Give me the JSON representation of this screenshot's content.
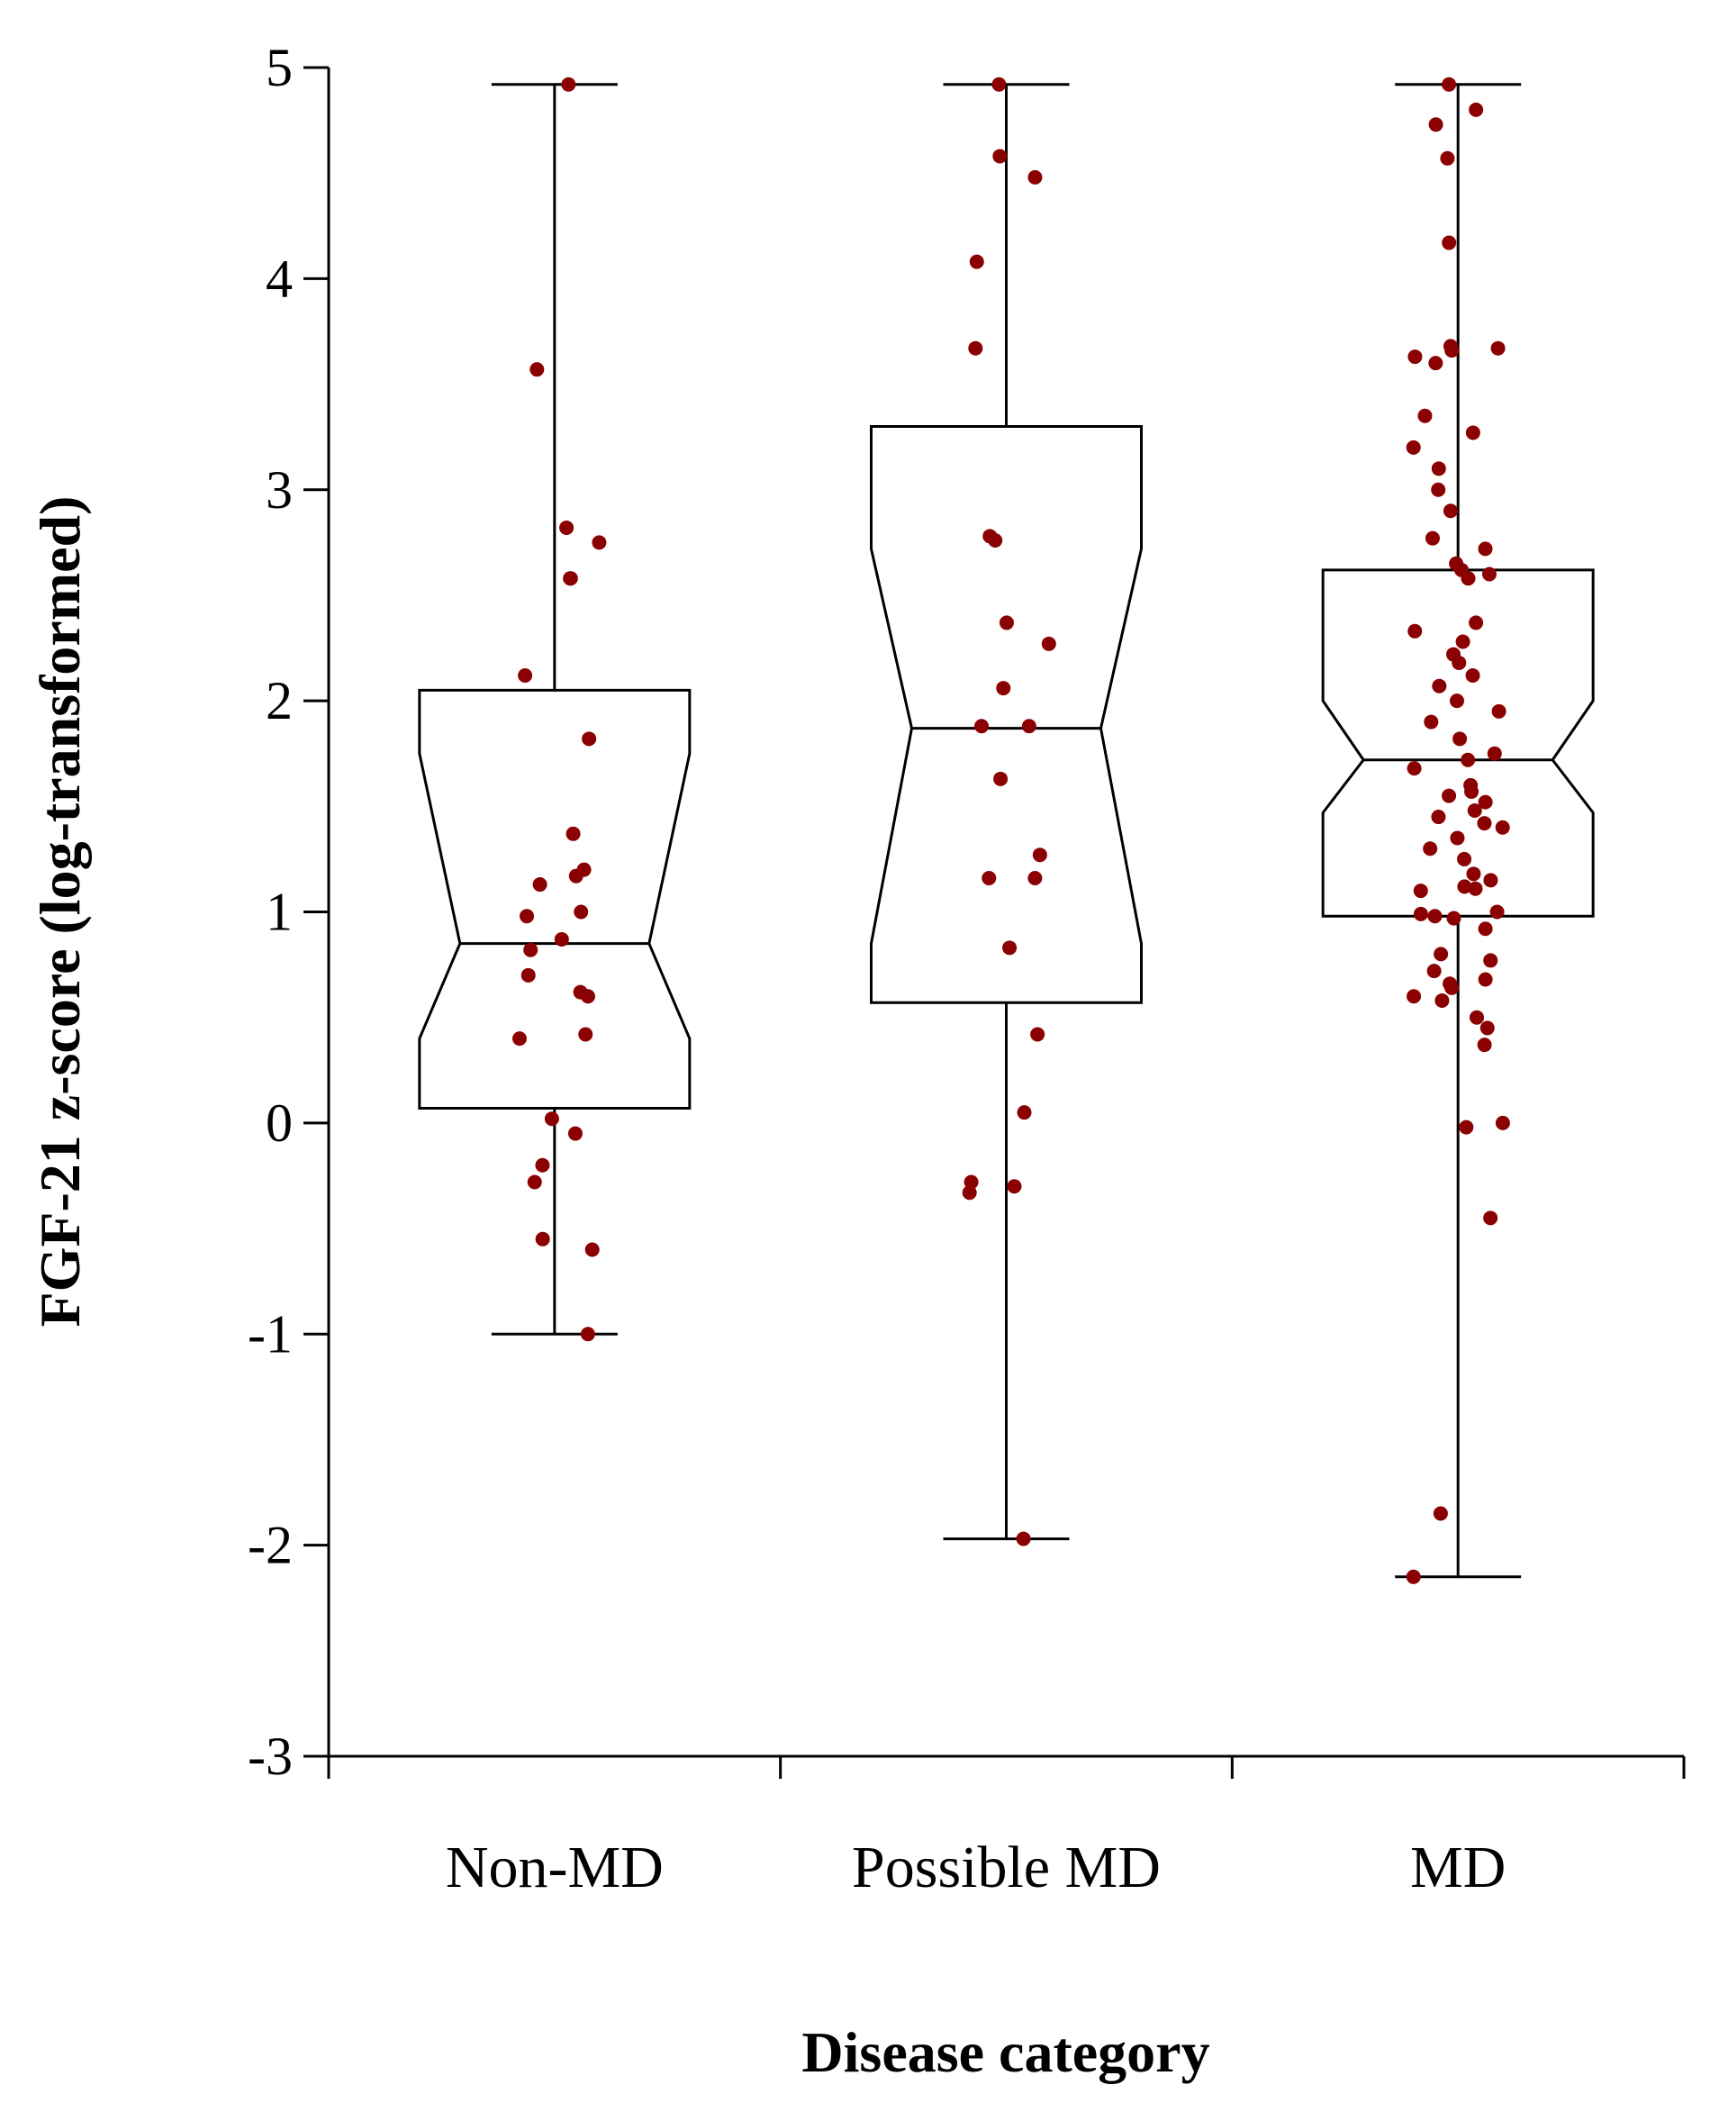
{
  "chart_data": {
    "type": "boxplot",
    "title": "",
    "xlabel": "Disease category",
    "ylabel": "FGF-21 z-score (log-transformed)",
    "ylim": [
      -3,
      5
    ],
    "yticks": [
      "5",
      "4",
      "3",
      "2",
      "1",
      "0",
      "-1",
      "-2",
      "-3"
    ],
    "grid": false,
    "colors": {
      "points": "#8b0000",
      "box_stroke": "#000000",
      "box_fill": "#ffffff"
    },
    "categories": [
      "Non-MD",
      "Possible MD",
      "MD"
    ],
    "boxes": [
      {
        "name": "Non-MD",
        "whisker_low": -1.0,
        "q1": 0.07,
        "median": 0.85,
        "q3": 2.05,
        "whisker_high": 4.92,
        "notch_low": 0.4,
        "notch_high": 1.75,
        "points": [
          4.92,
          3.57,
          2.82,
          2.75,
          2.58,
          2.58,
          2.12,
          1.82,
          1.37,
          1.2,
          1.17,
          1.13,
          1.0,
          0.98,
          0.87,
          0.82,
          0.7,
          0.62,
          0.6,
          0.42,
          0.4,
          0.02,
          -0.05,
          -0.2,
          -0.28,
          -0.55,
          -0.6,
          -1.0
        ]
      },
      {
        "name": "Possible MD",
        "whisker_low": -1.97,
        "q1": 0.57,
        "median": 1.87,
        "q3": 3.3,
        "whisker_high": 4.92,
        "notch_low": 0.85,
        "notch_high": 2.72,
        "points": [
          4.92,
          4.58,
          4.48,
          4.08,
          3.67,
          2.78,
          2.76,
          2.37,
          2.27,
          2.06,
          1.88,
          1.88,
          1.63,
          1.27,
          1.16,
          1.16,
          0.83,
          0.42,
          0.05,
          -0.28,
          -0.3,
          -0.33,
          -1.97
        ]
      },
      {
        "name": "MD",
        "whisker_low": -2.15,
        "q1": 0.98,
        "median": 1.72,
        "q3": 2.62,
        "whisker_high": 4.92,
        "notch_low": 1.47,
        "notch_high": 2.0,
        "points": [
          4.92,
          4.8,
          4.73,
          4.57,
          4.17,
          3.68,
          3.67,
          3.66,
          3.63,
          3.6,
          3.35,
          3.27,
          3.2,
          3.1,
          3.0,
          2.9,
          2.77,
          2.72,
          2.65,
          2.62,
          2.6,
          2.58,
          2.37,
          2.33,
          2.28,
          2.22,
          2.18,
          2.12,
          2.07,
          2.0,
          1.95,
          1.9,
          1.82,
          1.75,
          1.72,
          1.68,
          1.6,
          1.57,
          1.55,
          1.52,
          1.48,
          1.45,
          1.42,
          1.4,
          1.35,
          1.3,
          1.25,
          1.18,
          1.15,
          1.12,
          1.11,
          1.1,
          1.0,
          0.99,
          0.98,
          0.97,
          0.92,
          0.8,
          0.77,
          0.72,
          0.68,
          0.66,
          0.64,
          0.6,
          0.58,
          0.5,
          0.45,
          0.37,
          0.0,
          -0.02,
          -0.45,
          -1.85,
          -2.15
        ]
      }
    ]
  }
}
